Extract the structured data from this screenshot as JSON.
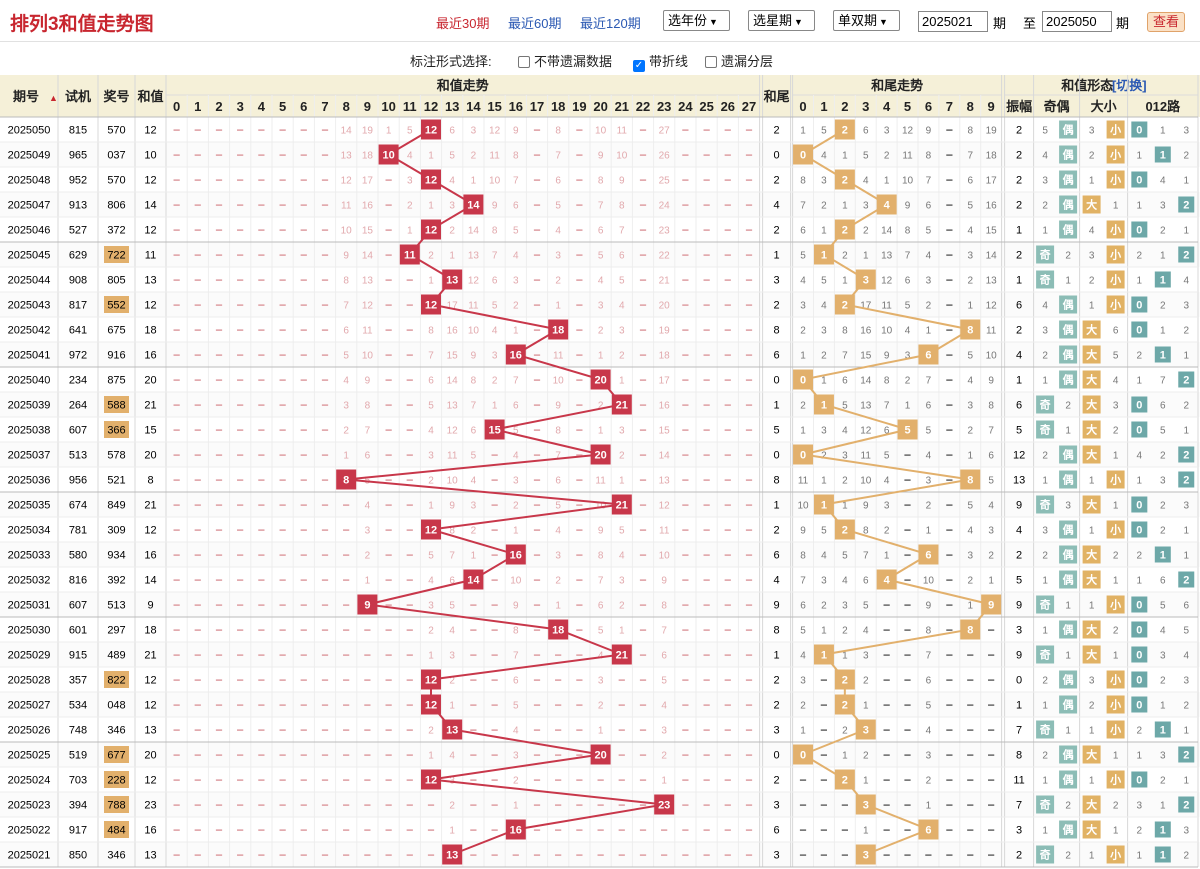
{
  "header": {
    "title": "排列3和值走势图",
    "range_links": [
      "最近30期",
      "最近60期",
      "最近120期"
    ],
    "selects": [
      "选年份",
      "选星期",
      "单双期"
    ],
    "from_label": "",
    "from_value": "2025021",
    "to_label": "至",
    "to_value": "2025050",
    "period_label": "期",
    "view_button": "查看"
  },
  "options": {
    "label": "标注形式选择:",
    "items": [
      {
        "label": "不带遗漏数据",
        "checked": false
      },
      {
        "label": "带折线",
        "checked": true
      },
      {
        "label": "遗漏分层",
        "checked": false
      }
    ]
  },
  "colors": {
    "sum_marker": "#c8374a",
    "tail_marker": "#e2b06c",
    "odd_even": "#8cbdb6",
    "size": "#e1b264",
    "route": "#6da8a8",
    "line_sum": "#c8374a",
    "line_tail": "#e2b06c"
  },
  "chart_data": {
    "type": "table",
    "columns": {
      "period": "期号",
      "trial": "试机",
      "draw": "奖号",
      "sum": "和值",
      "sum_trend": "和值走势",
      "tail": "和尾",
      "tail_trend": "和尾走势",
      "form": "和值形态",
      "switch": "[切换]",
      "amplitude": "振幅",
      "odd_even": "奇偶",
      "size": "大小",
      "route": "012路"
    },
    "sort_icon": "sort-arrows-icon",
    "sum_range": [
      0,
      27
    ],
    "tail_range": [
      0,
      9
    ],
    "rows": [
      {
        "p": "2025050",
        "t": "815",
        "d": "570",
        "s": 12,
        "tl": 2,
        "a": 2,
        "oe": "偶",
        "oeOmit": 5,
        "sz": "小",
        "szOmit": 3,
        "r": 0,
        "rOmit": [
          1,
          3
        ]
      },
      {
        "p": "2025049",
        "t": "965",
        "d": "037",
        "s": 10,
        "tl": 0,
        "a": 2,
        "oe": "偶",
        "oeOmit": 4,
        "sz": "小",
        "szOmit": 2,
        "r": 1,
        "rOmit": [
          1,
          2
        ]
      },
      {
        "p": "2025048",
        "t": "952",
        "d": "570",
        "s": 12,
        "tl": 2,
        "a": 2,
        "oe": "偶",
        "oeOmit": 3,
        "sz": "小",
        "szOmit": 1,
        "r": 0,
        "rOmit": [
          4,
          1
        ]
      },
      {
        "p": "2025047",
        "t": "913",
        "d": "806",
        "s": 14,
        "tl": 4,
        "a": 2,
        "oe": "偶",
        "oeOmit": 2,
        "sz": "大",
        "szOmit": 1,
        "r": 2,
        "rOmit": [
          1,
          3
        ]
      },
      {
        "p": "2025046",
        "t": "527",
        "d": "372",
        "s": 12,
        "tl": 2,
        "a": 1,
        "oe": "偶",
        "oeOmit": 1,
        "sz": "小",
        "szOmit": 4,
        "r": 0,
        "rOmit": [
          2,
          1
        ]
      },
      {
        "p": "2025045",
        "t": "629",
        "d": "722",
        "s": 11,
        "tl": 1,
        "a": 2,
        "oe": "奇",
        "oeOmit": 2,
        "sz": "小",
        "szOmit": 3,
        "r": 2,
        "rOmit": [
          2,
          1
        ]
      },
      {
        "p": "2025044",
        "t": "908",
        "d": "805",
        "s": 13,
        "tl": 3,
        "a": 1,
        "oe": "奇",
        "oeOmit": 1,
        "sz": "小",
        "szOmit": 2,
        "r": 1,
        "rOmit": [
          1,
          4
        ]
      },
      {
        "p": "2025043",
        "t": "817",
        "d": "552",
        "s": 12,
        "tl": 2,
        "a": 6,
        "oe": "偶",
        "oeOmit": 4,
        "sz": "小",
        "szOmit": 1,
        "r": 0,
        "rOmit": [
          2,
          3
        ]
      },
      {
        "p": "2025042",
        "t": "641",
        "d": "675",
        "s": 18,
        "tl": 8,
        "a": 2,
        "oe": "偶",
        "oeOmit": 3,
        "sz": "大",
        "szOmit": 6,
        "r": 0,
        "rOmit": [
          1,
          2
        ]
      },
      {
        "p": "2025041",
        "t": "972",
        "d": "916",
        "s": 16,
        "tl": 6,
        "a": 4,
        "oe": "偶",
        "oeOmit": 2,
        "sz": "大",
        "szOmit": 5,
        "r": 1,
        "rOmit": [
          2,
          1
        ]
      },
      {
        "p": "2025040",
        "t": "234",
        "d": "875",
        "s": 20,
        "tl": 0,
        "a": 1,
        "oe": "偶",
        "oeOmit": 1,
        "sz": "大",
        "szOmit": 4,
        "r": 2,
        "rOmit": [
          1,
          7
        ]
      },
      {
        "p": "2025039",
        "t": "264",
        "d": "588",
        "s": 21,
        "tl": 1,
        "a": 6,
        "oe": "奇",
        "oeOmit": 2,
        "sz": "大",
        "szOmit": 3,
        "r": 0,
        "rOmit": [
          6,
          2
        ]
      },
      {
        "p": "2025038",
        "t": "607",
        "d": "366",
        "s": 15,
        "tl": 5,
        "a": 5,
        "oe": "奇",
        "oeOmit": 1,
        "sz": "大",
        "szOmit": 2,
        "r": 0,
        "rOmit": [
          5,
          1
        ]
      },
      {
        "p": "2025037",
        "t": "513",
        "d": "578",
        "s": 20,
        "tl": 0,
        "a": 12,
        "oe": "偶",
        "oeOmit": 2,
        "sz": "大",
        "szOmit": 1,
        "r": 2,
        "rOmit": [
          4,
          2
        ]
      },
      {
        "p": "2025036",
        "t": "956",
        "d": "521",
        "s": 8,
        "tl": 8,
        "a": 13,
        "oe": "偶",
        "oeOmit": 1,
        "sz": "小",
        "szOmit": 1,
        "r": 2,
        "rOmit": [
          1,
          3
        ]
      },
      {
        "p": "2025035",
        "t": "674",
        "d": "849",
        "s": 21,
        "tl": 1,
        "a": 9,
        "oe": "奇",
        "oeOmit": 3,
        "sz": "大",
        "szOmit": 1,
        "r": 0,
        "rOmit": [
          2,
          3
        ]
      },
      {
        "p": "2025034",
        "t": "781",
        "d": "309",
        "s": 12,
        "tl": 2,
        "a": 4,
        "oe": "偶",
        "oeOmit": 3,
        "sz": "小",
        "szOmit": 1,
        "r": 0,
        "rOmit": [
          2,
          1
        ]
      },
      {
        "p": "2025033",
        "t": "580",
        "d": "934",
        "s": 16,
        "tl": 6,
        "a": 2,
        "oe": "偶",
        "oeOmit": 2,
        "sz": "大",
        "szOmit": 2,
        "r": 1,
        "rOmit": [
          2,
          1
        ]
      },
      {
        "p": "2025032",
        "t": "816",
        "d": "392",
        "s": 14,
        "tl": 4,
        "a": 5,
        "oe": "偶",
        "oeOmit": 1,
        "sz": "大",
        "szOmit": 1,
        "r": 2,
        "rOmit": [
          1,
          6
        ]
      },
      {
        "p": "2025031",
        "t": "607",
        "d": "513",
        "s": 9,
        "tl": 9,
        "a": 9,
        "oe": "奇",
        "oeOmit": 1,
        "sz": "小",
        "szOmit": 1,
        "r": 0,
        "rOmit": [
          5,
          6
        ]
      },
      {
        "p": "2025030",
        "t": "601",
        "d": "297",
        "s": 18,
        "tl": 8,
        "a": 3,
        "oe": "偶",
        "oeOmit": 1,
        "sz": "大",
        "szOmit": 2,
        "r": 0,
        "rOmit": [
          4,
          5
        ]
      },
      {
        "p": "2025029",
        "t": "915",
        "d": "489",
        "s": 21,
        "tl": 1,
        "a": 9,
        "oe": "奇",
        "oeOmit": 1,
        "sz": "大",
        "szOmit": 1,
        "r": 0,
        "rOmit": [
          3,
          4
        ]
      },
      {
        "p": "2025028",
        "t": "357",
        "d": "822",
        "s": 12,
        "tl": 2,
        "a": 0,
        "oe": "偶",
        "oeOmit": 2,
        "sz": "小",
        "szOmit": 3,
        "r": 0,
        "rOmit": [
          2,
          3
        ]
      },
      {
        "p": "2025027",
        "t": "534",
        "d": "048",
        "s": 12,
        "tl": 2,
        "a": 1,
        "oe": "偶",
        "oeOmit": 1,
        "sz": "小",
        "szOmit": 2,
        "r": 0,
        "rOmit": [
          1,
          2
        ]
      },
      {
        "p": "2025026",
        "t": "748",
        "d": "346",
        "s": 13,
        "tl": 3,
        "a": 7,
        "oe": "奇",
        "oeOmit": 1,
        "sz": "小",
        "szOmit": 1,
        "r": 1,
        "rOmit": [
          2,
          1
        ]
      },
      {
        "p": "2025025",
        "t": "519",
        "d": "677",
        "s": 20,
        "tl": 0,
        "a": 8,
        "oe": "偶",
        "oeOmit": 2,
        "sz": "大",
        "szOmit": 1,
        "r": 2,
        "rOmit": [
          1,
          3
        ]
      },
      {
        "p": "2025024",
        "t": "703",
        "d": "228",
        "s": 12,
        "tl": 2,
        "a": 11,
        "oe": "偶",
        "oeOmit": 1,
        "sz": "小",
        "szOmit": 1,
        "r": 0,
        "rOmit": [
          2,
          1
        ]
      },
      {
        "p": "2025023",
        "t": "394",
        "d": "788",
        "s": 23,
        "tl": 3,
        "a": 7,
        "oe": "奇",
        "oeOmit": 2,
        "sz": "大",
        "szOmit": 2,
        "r": 2,
        "rOmit": [
          3,
          1
        ]
      },
      {
        "p": "2025022",
        "t": "917",
        "d": "484",
        "s": 16,
        "tl": 6,
        "a": 3,
        "oe": "偶",
        "oeOmit": 1,
        "sz": "大",
        "szOmit": 1,
        "r": 1,
        "rOmit": [
          2,
          3
        ]
      },
      {
        "p": "2025021",
        "t": "850",
        "d": "346",
        "s": 13,
        "tl": 3,
        "a": 2,
        "oe": "奇",
        "oeOmit": 2,
        "sz": "小",
        "szOmit": 1,
        "r": 1,
        "rOmit": [
          1,
          2
        ]
      }
    ]
  }
}
